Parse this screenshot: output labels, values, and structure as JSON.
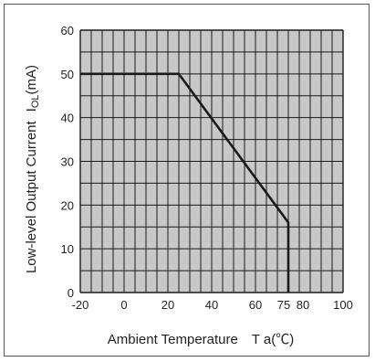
{
  "chart_data": {
    "type": "line",
    "title": "",
    "xlabel": "Ambient Temperature　T a(℃)",
    "ylabel_main": "Low-level Output Current",
    "ylabel_symbol": "I",
    "ylabel_sub": "OL",
    "ylabel_unit": "(mA)",
    "xlim": [
      -20,
      100
    ],
    "ylim": [
      0,
      60
    ],
    "x_ticks": [
      -20,
      0,
      20,
      40,
      60,
      75,
      80,
      100
    ],
    "y_ticks": [
      0,
      10,
      20,
      30,
      40,
      50,
      60
    ],
    "grid": true,
    "series": [
      {
        "x": [
          -20,
          25,
          75,
          75
        ],
        "y": [
          50,
          50,
          16,
          0
        ]
      }
    ]
  },
  "colors": {
    "plot_bg": "#c8c8c8",
    "grid": "#1a1a1a",
    "line": "#1a1a1a"
  }
}
